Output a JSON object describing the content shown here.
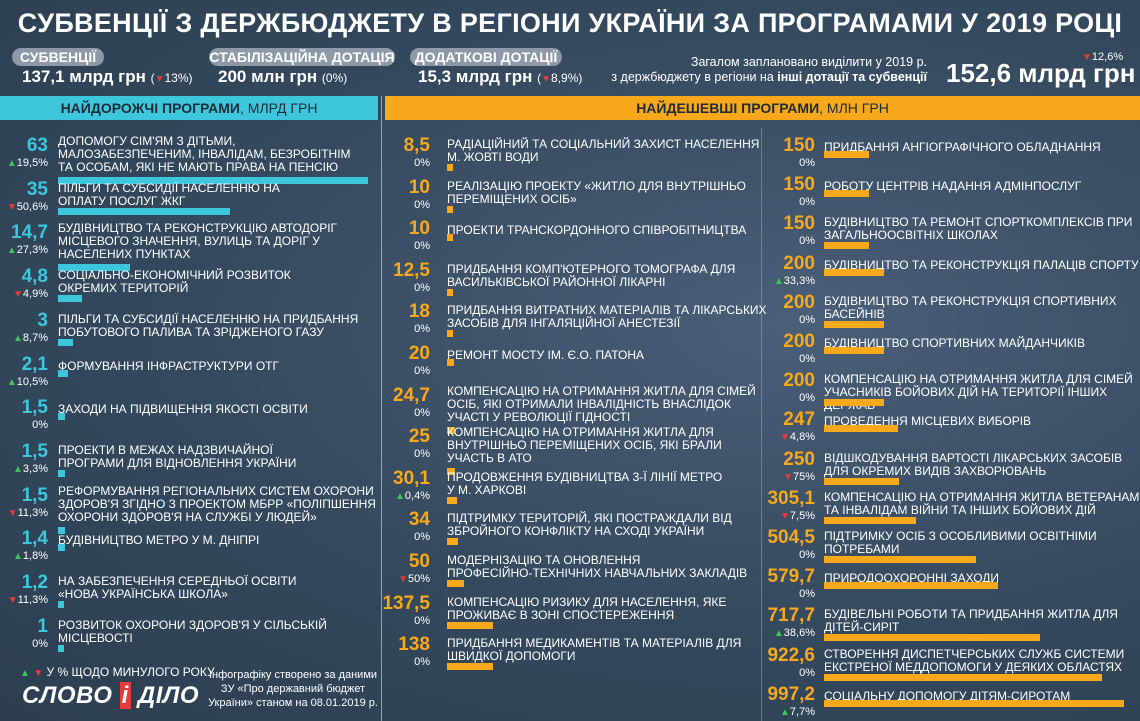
{
  "title": "СУБВЕНЦІЇ З ДЕРЖБЮДЖЕТУ В РЕГІОНИ УКРАЇНИ ЗА ПРОГРАМАМИ У 2019 РОЦІ",
  "summary": [
    {
      "label": "СУБВЕНЦІЇ",
      "value": "137,1 млрд грн",
      "pct": "13%",
      "dir": "down"
    },
    {
      "label": "СТАБІЛІЗАЦІЙНА ДОТАЦІЯ",
      "value": "200 млн грн",
      "pct": "(0%)",
      "dir": "none"
    },
    {
      "label": "ДОДАТКОВІ ДОТАЦІЇ",
      "value": "15,3 млрд грн",
      "pct": "8,9%",
      "dir": "down"
    }
  ],
  "total": {
    "line1": "Загалом заплановано виділити у 2019 р.",
    "line2a": "з держбюджету в регіони на ",
    "line2b": "інші дотації та субвенції",
    "value": "152,6 млрд грн",
    "pct": "12,6%"
  },
  "headers": {
    "left_bold": "НАЙДОРОЖЧІ ПРОГРАМИ",
    "left_unit": ", МЛРД ГРН",
    "right_bold": "НАЙДЕШЕВШІ ПРОГРАМИ",
    "right_unit": ", МЛН ГРН"
  },
  "colors": {
    "left": "#3ec6dc",
    "right": "#f7a81b",
    "up": "#3fc45a",
    "down": "#e63b3b"
  },
  "legend": {
    "text": "У % ЩОДО МИНУЛОГО РОКУ"
  },
  "logo": {
    "a": "СЛОВО",
    "b": "і",
    "c": "ДІЛО"
  },
  "credit": {
    "l1": "Інфографіку створено за даними",
    "l2": "ЗУ «Про державний бюджет",
    "l3": "України» станом на 08.01.2019 р."
  },
  "chart_data": [
    {
      "type": "bar",
      "title": "НАЙДОРОЖЧІ ПРОГРАМИ, МЛРД ГРН",
      "items": [
        {
          "value": "63",
          "num": 63,
          "pct": "19,5%",
          "dir": "up",
          "lines": [
            "ДОПОМОГУ СІМ'ЯМ З ДІТЬМИ,",
            "МАЛОЗАБЕЗПЕЧЕНИМ, ІНВАЛІДАМ, БЕЗРОБІТНІМ",
            "ТА ОСОБАМ, ЯКІ НЕ МАЮТЬ ПРАВА НА ПЕНСІЮ"
          ]
        },
        {
          "value": "35",
          "num": 35,
          "pct": "50,6%",
          "dir": "down",
          "lines": [
            "ПІЛЬГИ ТА СУБСИДІЇ НАСЕЛЕННЮ НА",
            "ОПЛАТУ ПОСЛУГ ЖКГ"
          ]
        },
        {
          "value": "14,7",
          "num": 14.7,
          "pct": "27,3%",
          "dir": "up",
          "lines": [
            "БУДІВНИЦТВО ТА РЕКОНСТРУКЦІЮ АВТОДОРІГ",
            "МІСЦЕВОГО ЗНАЧЕННЯ, ВУЛИЦЬ ТА ДОРІГ У",
            "НАСЕЛЕНИХ ПУНКТАХ"
          ]
        },
        {
          "value": "4,8",
          "num": 4.8,
          "pct": "4,9%",
          "dir": "down",
          "lines": [
            "СОЦІАЛЬНО-ЕКОНОМІЧНИЙ РОЗВИТОК",
            "ОКРЕМИХ ТЕРИТОРІЙ"
          ]
        },
        {
          "value": "3",
          "num": 3,
          "pct": "8,7%",
          "dir": "up",
          "lines": [
            "ПІЛЬГИ ТА СУБСИДІЇ НАСЕЛЕННЮ НА ПРИДБАННЯ",
            "ПОБУТОВОГО ПАЛИВА ТА ЗРІДЖЕНОГО ГАЗУ"
          ]
        },
        {
          "value": "2,1",
          "num": 2.1,
          "pct": "10,5%",
          "dir": "up",
          "lines": [
            "ФОРМУВАННЯ ІНФРАСТРУКТУРИ ОТГ"
          ]
        },
        {
          "value": "1,5",
          "num": 1.5,
          "pct": "0%",
          "dir": "none",
          "lines": [
            "ЗАХОДИ НА ПІДВИЩЕННЯ ЯКОСТІ ОСВІТИ"
          ]
        },
        {
          "value": "1,5",
          "num": 1.5,
          "pct": "3,3%",
          "dir": "up",
          "lines": [
            "ПРОЕКТИ В МЕЖАХ НАДЗВИЧАЙНОЇ",
            "ПРОГРАМИ ДЛЯ ВІДНОВЛЕННЯ УКРАЇНИ"
          ]
        },
        {
          "value": "1,5",
          "num": 1.5,
          "pct": "11,3%",
          "dir": "down",
          "lines": [
            "РЕФОРМУВАННЯ РЕГІОНАЛЬНИХ СИСТЕМ ОХОРОНИ",
            "ЗДОРОВ'Я ЗГІДНО З ПРОЕКТОМ МБРР «ПОЛІПШЕННЯ",
            "ОХОРОНИ ЗДОРОВ'Я НА СЛУЖБІ У ЛЮДЕЙ»"
          ]
        },
        {
          "value": "1,4",
          "num": 1.4,
          "pct": "1,8%",
          "dir": "up",
          "lines": [
            "БУДІВНИЦТВО МЕТРО У М. ДНІПРІ"
          ]
        },
        {
          "value": "1,2",
          "num": 1.2,
          "pct": "11,3%",
          "dir": "down",
          "lines": [
            "НА ЗАБЕЗПЕЧЕННЯ СЕРЕДНЬОЇ ОСВІТИ",
            "«НОВА УКРАЇНСЬКА ШКОЛА»"
          ]
        },
        {
          "value": "1",
          "num": 1,
          "pct": "0%",
          "dir": "none",
          "lines": [
            "РОЗВИТОК ОХОРОНИ ЗДОРОВ'Я У СІЛЬСЬКІЙ",
            "МІСЦЕВОСТІ"
          ]
        }
      ]
    },
    {
      "type": "bar",
      "title": "НАЙДЕШЕВШІ ПРОГРАМИ, МЛН ГРН",
      "items": [
        {
          "value": "8,5",
          "num": 8.5,
          "pct": "0%",
          "dir": "none",
          "lines": [
            "РАДІАЦІЙНИЙ ТА СОЦІАЛЬНИЙ ЗАХИСТ НАСЕЛЕННЯ",
            "М. ЖОВТІ ВОДИ"
          ]
        },
        {
          "value": "10",
          "num": 10,
          "pct": "0%",
          "dir": "none",
          "lines": [
            "РЕАЛІЗАЦІЮ ПРОЕКТУ «ЖИТЛО ДЛЯ ВНУТРІШНЬО",
            "ПЕРЕМІЩЕНИХ ОСІБ»"
          ]
        },
        {
          "value": "10",
          "num": 10,
          "pct": "0%",
          "dir": "none",
          "lines": [
            "ПРОЕКТИ ТРАНСКОРДОННОГО СПІВРОБІТНИЦТВА"
          ]
        },
        {
          "value": "12,5",
          "num": 12.5,
          "pct": "0%",
          "dir": "none",
          "lines": [
            "ПРИДБАННЯ КОМП'ЮТЕРНОГО ТОМОГРАФА ДЛЯ",
            "ВАСИЛЬКІВСЬКОЇ РАЙОННОЇ ЛІКАРНІ"
          ]
        },
        {
          "value": "18",
          "num": 18,
          "pct": "0%",
          "dir": "none",
          "lines": [
            "ПРИДБАННЯ ВИТРАТНИХ МАТЕРІАЛІВ ТА ЛІКАРСЬКИХ",
            "ЗАСОБІВ ДЛЯ ІНГАЛЯЦІЙНОЇ АНЕСТЕЗІЇ"
          ]
        },
        {
          "value": "20",
          "num": 20,
          "pct": "0%",
          "dir": "none",
          "lines": [
            "РЕМОНТ МОСТУ ІМ. Є.О. ПАТОНА"
          ]
        },
        {
          "value": "24,7",
          "num": 24.7,
          "pct": "0%",
          "dir": "none",
          "lines": [
            "КОМПЕНСАЦІЮ НА ОТРИМАННЯ ЖИТЛА ДЛЯ СІМЕЙ",
            "ОСІБ, ЯКІ ОТРИМАЛИ ІНВАЛІДНІСТЬ ВНАСЛІДОК",
            "УЧАСТІ У РЕВОЛЮЦІЇ ГІДНОСТІ"
          ]
        },
        {
          "value": "25",
          "num": 25,
          "pct": "0%",
          "dir": "none",
          "lines": [
            "КОМПЕНСАЦІЮ НА ОТРИМАННЯ ЖИТЛА ДЛЯ",
            "ВНУТРІШНЬО ПЕРЕМІЩЕНИХ ОСІБ, ЯКІ БРАЛИ",
            "УЧАСТЬ В АТО"
          ]
        },
        {
          "value": "30,1",
          "num": 30.1,
          "pct": "0,4%",
          "dir": "up",
          "lines": [
            "ПРОДОВЖЕННЯ БУДІВНИЦТВА 3-Ї ЛІНІЇ МЕТРО",
            "У М. ХАРКОВІ"
          ]
        },
        {
          "value": "34",
          "num": 34,
          "pct": "0%",
          "dir": "none",
          "lines": [
            "ПІДТРИМКУ ТЕРИТОРІЙ, ЯКІ ПОСТРАЖДАЛИ ВІД",
            "ЗБРОЙНОГО КОНФЛІКТУ НА СХОДІ УКРАЇНИ"
          ]
        },
        {
          "value": "50",
          "num": 50,
          "pct": "50%",
          "dir": "down",
          "lines": [
            "МОДЕРНІЗАЦІЮ ТА ОНОВЛЕННЯ",
            "ПРОФЕСІЙНО-ТЕХНІЧНИХ НАВЧАЛЬНИХ ЗАКЛАДІВ"
          ]
        },
        {
          "value": "137,5",
          "num": 137.5,
          "pct": "0%",
          "dir": "none",
          "lines": [
            "КОМПЕНСАЦІЮ РИЗИКУ ДЛЯ НАСЕЛЕННЯ, ЯКЕ",
            "ПРОЖИВАЄ В ЗОНІ СПОСТЕРЕЖЕННЯ"
          ]
        },
        {
          "value": "138",
          "num": 138,
          "pct": "0%",
          "dir": "none",
          "lines": [
            "ПРИДБАННЯ МЕДИКАМЕНТІВ ТА МАТЕРІАЛІВ ДЛЯ",
            "ШВИДКОЇ ДОПОМОГИ"
          ]
        }
      ]
    },
    {
      "type": "bar",
      "title": "НАЙДЕШЕВШІ ПРОГРАМИ, МЛН ГРН",
      "items": [
        {
          "value": "150",
          "num": 150,
          "pct": "0%",
          "dir": "none",
          "lines": [
            "ПРИДБАННЯ АНГІОГРАФІЧНОГО ОБЛАДНАННЯ"
          ]
        },
        {
          "value": "150",
          "num": 150,
          "pct": "0%",
          "dir": "none",
          "lines": [
            "РОБОТУ ЦЕНТРІВ НАДАННЯ АДМІНПОСЛУГ"
          ]
        },
        {
          "value": "150",
          "num": 150,
          "pct": "0%",
          "dir": "none",
          "lines": [
            "БУДІВНИЦТВО ТА РЕМОНТ СПОРТКОМПЛЕКСІВ ПРИ",
            "ЗАГАЛЬНООСВІТНІХ ШКОЛАХ"
          ]
        },
        {
          "value": "200",
          "num": 200,
          "pct": "33,3%",
          "dir": "up",
          "lines": [
            "БУДІВНИЦТВО ТА РЕКОНСТРУКЦІЯ ПАЛАЦІВ СПОРТУ"
          ]
        },
        {
          "value": "200",
          "num": 200,
          "pct": "0%",
          "dir": "none",
          "lines": [
            "БУДІВНИЦТВО ТА РЕКОНСТРУКЦІЯ СПОРТИВНИХ",
            "БАСЕЙНІВ"
          ]
        },
        {
          "value": "200",
          "num": 200,
          "pct": "0%",
          "dir": "none",
          "lines": [
            "БУДІВНИЦТВО СПОРТИВНИХ МАЙДАНЧИКІВ"
          ]
        },
        {
          "value": "200",
          "num": 200,
          "pct": "0%",
          "dir": "none",
          "lines": [
            "КОМПЕНСАЦІЮ НА ОТРИМАННЯ ЖИТЛА ДЛЯ СІМЕЙ",
            "УЧАСНИКІВ БОЙОВИХ ДІЙ НА ТЕРИТОРІЇ ІНШИХ ДЕРЖАВ"
          ]
        },
        {
          "value": "247",
          "num": 247,
          "pct": "4,8%",
          "dir": "down",
          "lines": [
            "ПРОВЕДЕННЯ МІСЦЕВИХ ВИБОРІВ"
          ]
        },
        {
          "value": "250",
          "num": 250,
          "pct": "75%",
          "dir": "down",
          "lines": [
            "ВІДШКОДУВАННЯ ВАРТОСТІ ЛІКАРСЬКИХ ЗАСОБІВ",
            "ДЛЯ ОКРЕМИХ ВИДІВ ЗАХВОРЮВАНЬ"
          ]
        },
        {
          "value": "305,1",
          "num": 305.1,
          "pct": "7,5%",
          "dir": "down",
          "lines": [
            "КОМПЕНСАЦІЮ НА ОТРИМАННЯ ЖИТЛА ВЕТЕРАНАМ",
            "ТА ІНВАЛІДАМ ВІЙНИ ТА ІНШИХ БОЙОВИХ ДІЙ"
          ]
        },
        {
          "value": "504,5",
          "num": 504.5,
          "pct": "0%",
          "dir": "none",
          "lines": [
            "ПІДТРИМКУ ОСІБ З ОСОБЛИВИМИ ОСВІТНІМИ",
            "ПОТРЕБАМИ"
          ]
        },
        {
          "value": "579,7",
          "num": 579.7,
          "pct": "0%",
          "dir": "none",
          "lines": [
            "ПРИРОДООХОРОННІ ЗАХОДИ"
          ]
        },
        {
          "value": "717,7",
          "num": 717.7,
          "pct": "38,6%",
          "dir": "up",
          "lines": [
            "БУДІВЕЛЬНІ РОБОТИ ТА ПРИДБАННЯ ЖИТЛА ДЛЯ",
            "ДІТЕЙ-СИРІТ"
          ]
        },
        {
          "value": "922,6",
          "num": 922.6,
          "pct": "0%",
          "dir": "none",
          "lines": [
            "СТВОРЕННЯ ДИСПЕТЧЕРСЬКИХ СЛУЖБ СИСТЕМИ",
            "ЕКСТРЕНОЇ МЕДДОПОМОГИ У ДЕЯКИХ ОБЛАСТЯХ"
          ]
        },
        {
          "value": "997,2",
          "num": 997.2,
          "pct": "7,7%",
          "dir": "up",
          "lines": [
            "СОЦІАЛЬНУ ДОПОМОГУ ДІТЯМ-СИРОТАМ"
          ]
        }
      ]
    }
  ]
}
